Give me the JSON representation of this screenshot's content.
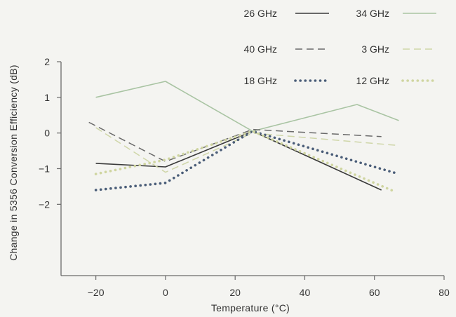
{
  "chart_data": {
    "type": "line",
    "title": "",
    "xlabel": "Temperature (°C)",
    "ylabel": "Change in 5356 Conversion Efficiency (dB)",
    "xlim": [
      -30,
      80
    ],
    "ylim": [
      -4,
      2
    ],
    "x_ticks": [
      "−20",
      "0",
      "20",
      "40",
      "60",
      "80"
    ],
    "y_ticks": [
      "2",
      "1",
      "0",
      "−1",
      "−2"
    ],
    "grid": false,
    "legend_position": "top-right",
    "series": [
      {
        "name": "26 GHz",
        "color": "#3a3a3a",
        "style": "solid",
        "x": [
          -20,
          0,
          25,
          62
        ],
        "y": [
          -0.85,
          -0.95,
          0.05,
          -1.6
        ]
      },
      {
        "name": "34 GHz",
        "color": "#a9c4a3",
        "style": "solid",
        "x": [
          -20,
          0,
          25,
          55,
          67
        ],
        "y": [
          1.0,
          1.45,
          0.05,
          0.8,
          0.35
        ]
      },
      {
        "name": "40 GHz",
        "color": "#6a6a6a",
        "style": "dashed",
        "x": [
          -22,
          0,
          25,
          62
        ],
        "y": [
          0.3,
          -0.8,
          0.1,
          -0.1
        ]
      },
      {
        "name": "3 GHz",
        "color": "#cfd6a8",
        "style": "dashed",
        "x": [
          -20,
          0,
          25,
          67
        ],
        "y": [
          0.15,
          -1.1,
          0.0,
          -0.35
        ]
      },
      {
        "name": "18 GHz",
        "color": "#4a5d78",
        "style": "dotted",
        "x": [
          -20,
          0,
          25,
          67
        ],
        "y": [
          -1.6,
          -1.4,
          0.05,
          -1.15
        ]
      },
      {
        "name": "12 GHz",
        "color": "#cfd5a0",
        "style": "dotted",
        "x": [
          -20,
          0,
          25,
          66
        ],
        "y": [
          -1.15,
          -0.75,
          0.05,
          -1.65
        ]
      }
    ]
  }
}
